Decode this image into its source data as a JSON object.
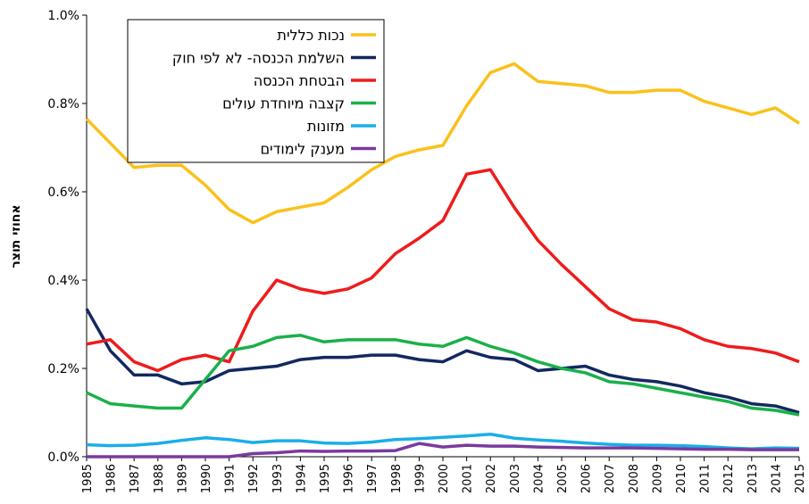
{
  "chart_data": {
    "type": "line",
    "y_label": "אחוזי תוצר",
    "categories": [
      "1985",
      "1986",
      "1987",
      "1988",
      "1989",
      "1990",
      "1991",
      "1992",
      "1993",
      "1994",
      "1995",
      "1996",
      "1997",
      "1998",
      "1999",
      "2000",
      "2001",
      "2002",
      "2003",
      "2004",
      "2005",
      "2006",
      "2007",
      "2008",
      "2009",
      "2010",
      "2011",
      "2012",
      "2013",
      "2014",
      "2015"
    ],
    "ylim": [
      0,
      1.0
    ],
    "yticks": [
      {
        "value": 0,
        "label": "0.0%"
      },
      {
        "value": 0.2,
        "label": "0.2%"
      },
      {
        "value": 0.4,
        "label": "0.4%"
      },
      {
        "value": 0.6,
        "label": "0.6%"
      },
      {
        "value": 0.8,
        "label": "0.8%"
      },
      {
        "value": 1.0,
        "label": "1.0%"
      }
    ],
    "grid": false,
    "legend": "top-left",
    "series": [
      {
        "name": "נכות כללית",
        "color": "#fac11a",
        "values": [
          0.765,
          0.71,
          0.655,
          0.66,
          0.66,
          0.615,
          0.56,
          0.53,
          0.555,
          0.565,
          0.575,
          0.61,
          0.65,
          0.68,
          0.695,
          0.705,
          0.795,
          0.87,
          0.89,
          0.85,
          0.845,
          0.84,
          0.825,
          0.825,
          0.83,
          0.83,
          0.805,
          0.79,
          0.775,
          0.79,
          0.755
        ]
      },
      {
        "name": "השלמת הכנסה- לא לפי חוק",
        "color": "#13285f",
        "values": [
          0.335,
          0.24,
          0.185,
          0.185,
          0.165,
          0.17,
          0.195,
          0.2,
          0.205,
          0.22,
          0.225,
          0.225,
          0.23,
          0.23,
          0.22,
          0.215,
          0.24,
          0.225,
          0.22,
          0.195,
          0.2,
          0.205,
          0.185,
          0.175,
          0.17,
          0.16,
          0.145,
          0.135,
          0.12,
          0.115,
          0.1
        ]
      },
      {
        "name": "הבטחת הכנסה",
        "color": "#ee1c1c",
        "values": [
          0.255,
          0.265,
          0.215,
          0.195,
          0.22,
          0.23,
          0.215,
          0.33,
          0.4,
          0.38,
          0.37,
          0.38,
          0.405,
          0.46,
          0.495,
          0.535,
          0.64,
          0.65,
          0.565,
          0.49,
          0.435,
          0.385,
          0.335,
          0.31,
          0.305,
          0.29,
          0.265,
          0.25,
          0.245,
          0.235,
          0.215
        ]
      },
      {
        "name": "קצבה מיוחדת עולים",
        "color": "#1ab04a",
        "values": [
          0.145,
          0.12,
          0.115,
          0.11,
          0.11,
          0.175,
          0.24,
          0.25,
          0.27,
          0.275,
          0.26,
          0.265,
          0.265,
          0.265,
          0.255,
          0.25,
          0.27,
          0.25,
          0.235,
          0.215,
          0.2,
          0.19,
          0.17,
          0.165,
          0.155,
          0.145,
          0.135,
          0.125,
          0.11,
          0.105,
          0.095
        ]
      },
      {
        "name": "מזונות",
        "color": "#1aaee8",
        "values": [
          0.027,
          0.025,
          0.026,
          0.03,
          0.037,
          0.043,
          0.039,
          0.032,
          0.036,
          0.036,
          0.031,
          0.03,
          0.033,
          0.039,
          0.041,
          0.044,
          0.047,
          0.051,
          0.042,
          0.038,
          0.035,
          0.031,
          0.028,
          0.026,
          0.026,
          0.025,
          0.023,
          0.02,
          0.018,
          0.02,
          0.019
        ]
      },
      {
        "name": "מענק לימודים",
        "color": "#7a3a9e",
        "values": [
          0,
          0,
          0,
          0,
          0,
          0,
          0,
          0.007,
          0.009,
          0.013,
          0.012,
          0.013,
          0.013,
          0.014,
          0.03,
          0.022,
          0.026,
          0.024,
          0.024,
          0.022,
          0.021,
          0.02,
          0.02,
          0.02,
          0.019,
          0.018,
          0.017,
          0.017,
          0.016,
          0.016,
          0.016
        ]
      }
    ]
  }
}
